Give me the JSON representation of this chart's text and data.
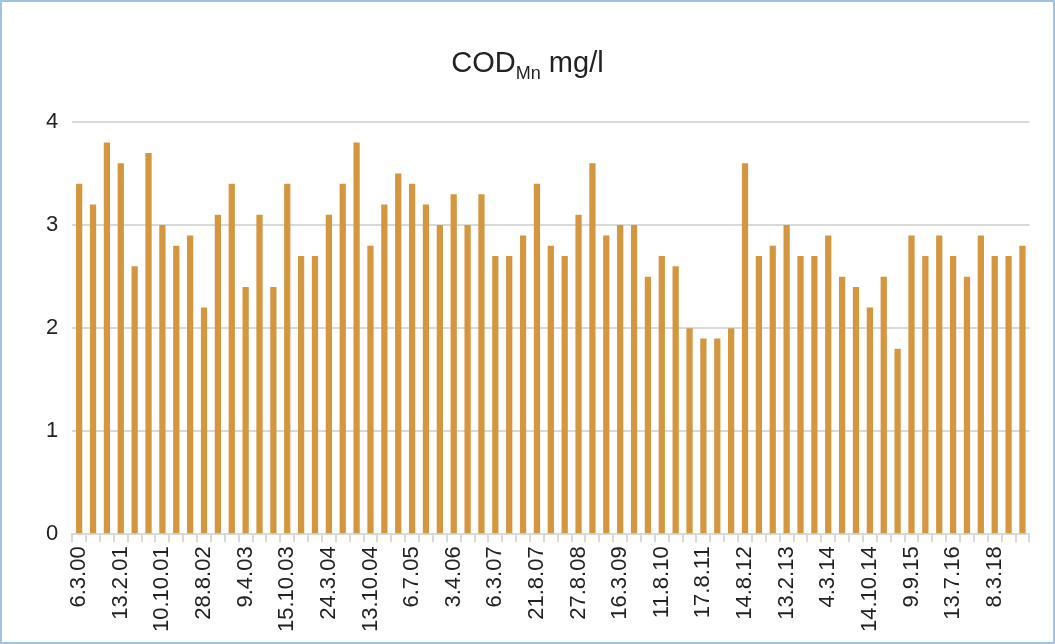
{
  "chart_data": {
    "type": "bar",
    "title": "COD$_{Mn}$ mg/l",
    "categories": [
      "6.3.00",
      null,
      null,
      "13.2.01",
      null,
      null,
      "10.10.01",
      null,
      null,
      "28.8.02",
      null,
      null,
      "9.4.03",
      null,
      null,
      "15.10.03",
      null,
      null,
      "24.3.04",
      null,
      null,
      "13.10.04",
      null,
      null,
      "6.7.05",
      null,
      null,
      "3.4.06",
      null,
      null,
      "6.3.07",
      null,
      null,
      "21.8.07",
      null,
      null,
      "27.8.08",
      null,
      null,
      "16.3.09",
      null,
      null,
      "11.8.10",
      null,
      null,
      "17.8.11",
      null,
      null,
      "14.8.12",
      null,
      null,
      "13.2.13",
      null,
      null,
      "4.3.14",
      null,
      null,
      "14.10.14",
      null,
      null,
      "9.9.15",
      null,
      null,
      "13.7.16",
      null,
      null,
      "8.3.18",
      null,
      null
    ],
    "values": [
      3.4,
      3.2,
      3.8,
      3.6,
      2.6,
      3.7,
      3.0,
      2.8,
      2.9,
      2.2,
      3.1,
      3.4,
      2.4,
      3.1,
      2.4,
      3.4,
      2.7,
      2.7,
      3.1,
      3.4,
      3.8,
      2.8,
      3.2,
      3.5,
      3.4,
      3.2,
      3.0,
      3.3,
      3.0,
      3.3,
      2.7,
      2.7,
      2.9,
      3.4,
      2.8,
      2.7,
      3.1,
      3.6,
      2.9,
      3.0,
      3.0,
      2.5,
      2.7,
      2.6,
      2.0,
      1.9,
      1.9,
      2.0,
      3.6,
      2.7,
      2.8,
      3.0,
      2.7,
      2.7,
      2.9,
      2.5,
      2.4,
      2.2,
      2.5,
      1.8,
      2.9,
      2.7,
      2.9,
      2.7,
      2.5,
      2.9,
      2.7,
      2.7,
      2.8
    ],
    "color": "#d4963e",
    "ylim": [
      0,
      4
    ],
    "yticks": [
      0,
      1,
      2,
      3,
      4
    ],
    "grid": "y"
  }
}
